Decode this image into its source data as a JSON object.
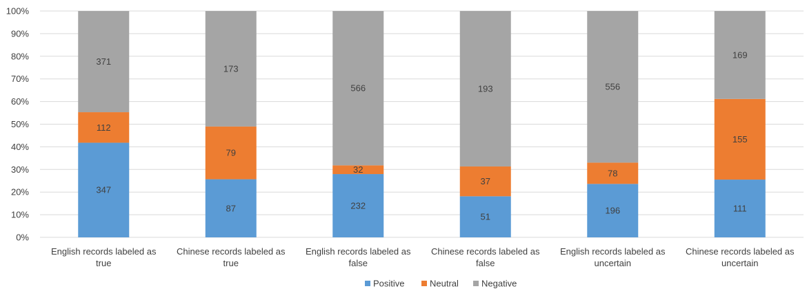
{
  "chart_data": {
    "type": "bar",
    "stacked": true,
    "normalized": true,
    "categories": [
      [
        "English records labeled as",
        "true"
      ],
      [
        "Chinese records labeled as",
        "true"
      ],
      [
        "English records labeled as",
        "false"
      ],
      [
        "Chinese records labeled as",
        "false"
      ],
      [
        "English records labeled as",
        "uncertain"
      ],
      [
        "Chinese records labeled as",
        "uncertain"
      ]
    ],
    "series": [
      {
        "name": "Positive",
        "color": "#5b9bd5",
        "values": [
          347,
          87,
          232,
          51,
          196,
          111
        ]
      },
      {
        "name": "Neutral",
        "color": "#ed7d31",
        "values": [
          112,
          79,
          32,
          37,
          78,
          155
        ]
      },
      {
        "name": "Negative",
        "color": "#a5a5a5",
        "values": [
          371,
          173,
          566,
          193,
          556,
          169
        ]
      }
    ],
    "y_ticks": [
      "0%",
      "10%",
      "20%",
      "30%",
      "40%",
      "50%",
      "60%",
      "70%",
      "80%",
      "90%",
      "100%"
    ],
    "ylim": [
      0,
      100
    ],
    "grid": true,
    "legend": "bottom-center",
    "title": "",
    "xlabel": "",
    "ylabel": ""
  }
}
